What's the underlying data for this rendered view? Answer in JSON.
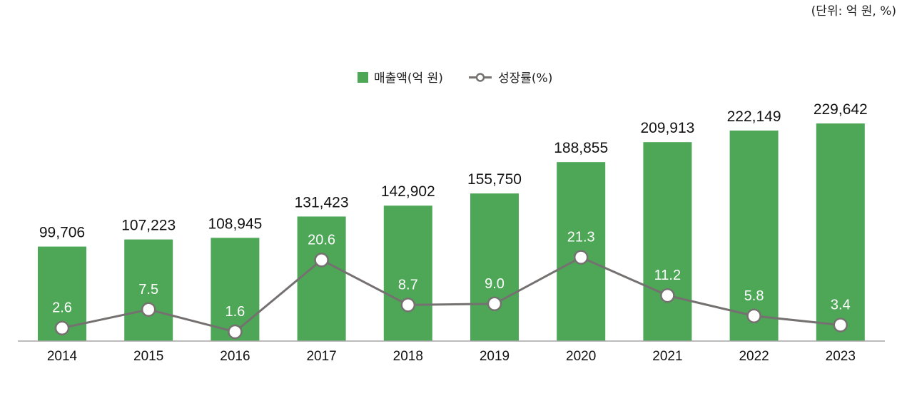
{
  "unit_note": "(단위: 억 원, %)",
  "colors": {
    "bar": "#4da756",
    "line": "#767171",
    "marker_fill": "#ffffff",
    "axis": "#a6a6a6"
  },
  "chart_data": {
    "type": "bar+line",
    "categories": [
      "2014",
      "2015",
      "2016",
      "2017",
      "2018",
      "2019",
      "2020",
      "2021",
      "2022",
      "2023"
    ],
    "series": [
      {
        "name": "매출액(억 원)",
        "type": "bar",
        "values": [
          99706,
          107223,
          108945,
          131423,
          142902,
          155750,
          188855,
          209913,
          222149,
          229642
        ],
        "labels": [
          "99,706",
          "107,223",
          "108,945",
          "131,423",
          "142,902",
          "155,750",
          "188,855",
          "209,913",
          "222,149",
          "229,642"
        ]
      },
      {
        "name": "성장률(%)",
        "type": "line",
        "values": [
          2.6,
          7.5,
          1.6,
          20.6,
          8.7,
          9.0,
          21.3,
          11.2,
          5.8,
          3.4
        ],
        "labels": [
          "2.6",
          "7.5",
          "1.6",
          "20.6",
          "8.7",
          "9.0",
          "21.3",
          "11.2",
          "5.8",
          "3.4"
        ]
      }
    ],
    "legend_position": "top-center",
    "grid": false
  }
}
